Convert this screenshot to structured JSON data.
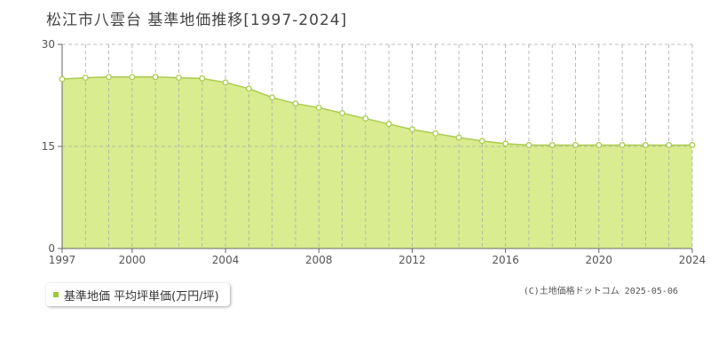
{
  "title": "松江市八雲台 基準地価推移[1997-2024]",
  "legend": {
    "label": "基準地価 平均坪単価(万円/坪)"
  },
  "source": "(C)土地価格ドットコム 2025-05-06",
  "colors": {
    "fill": "#d9ec8f",
    "line": "#a9cc4e",
    "marker": "#9acd32",
    "grid": "#aaaaaa"
  },
  "chart_data": {
    "type": "area",
    "title": "松江市八雲台 基準地価推移[1997-2024]",
    "xlabel": "",
    "ylabel": "",
    "xlim": [
      1997,
      2024
    ],
    "ylim": [
      0,
      30
    ],
    "yticks": [
      0,
      15,
      30
    ],
    "xticks": [
      1997,
      2000,
      2004,
      2008,
      2012,
      2016,
      2020,
      2024
    ],
    "grid": true,
    "legend_position": "bottom-left",
    "series": [
      {
        "name": "基準地価 平均坪単価(万円/坪)",
        "x": [
          1997,
          1998,
          1999,
          2000,
          2001,
          2002,
          2003,
          2004,
          2005,
          2006,
          2007,
          2008,
          2009,
          2010,
          2011,
          2012,
          2013,
          2014,
          2015,
          2016,
          2017,
          2018,
          2019,
          2020,
          2021,
          2022,
          2023,
          2024
        ],
        "values": [
          24.9,
          25.1,
          25.2,
          25.2,
          25.2,
          25.1,
          25.0,
          24.4,
          23.5,
          22.2,
          21.3,
          20.7,
          19.9,
          19.1,
          18.3,
          17.5,
          16.9,
          16.3,
          15.8,
          15.4,
          15.2,
          15.2,
          15.2,
          15.2,
          15.2,
          15.2,
          15.2,
          15.2
        ]
      }
    ]
  }
}
